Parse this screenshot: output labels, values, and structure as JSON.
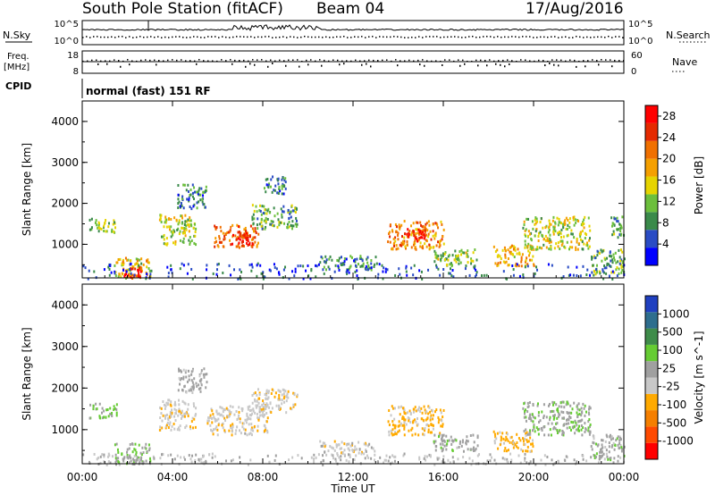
{
  "header": {
    "station": "South Pole Station (fitACF)",
    "beam": "Beam 04",
    "date": "17/Aug/2016"
  },
  "top_panels": {
    "nsky_label": "N.Sky",
    "nsky_ticks": [
      "10^5",
      "10^0"
    ],
    "nsearch_label": "N.Search",
    "nsearch_ticks": [
      "10^5",
      "10^0"
    ],
    "freq_label_1": "Freq.",
    "freq_label_2": "[MHz]",
    "freq_ticks": [
      "18",
      "8"
    ],
    "nave_label": "Nave",
    "nave_ticks": [
      "60",
      "0"
    ],
    "cpid_label": "CPID",
    "cpid_value": "normal (fast) 151 RF"
  },
  "colors": {
    "power_scale": [
      "#0000ff",
      "#2a4cc4",
      "#3a8a4a",
      "#6cbf3c",
      "#e6d400",
      "#f5a000",
      "#f07000",
      "#e52a00",
      "#ff0000"
    ],
    "velocity_scale": [
      "#ff0000",
      "#ff4a00",
      "#f57f00",
      "#ffaa00",
      "#c8c8c8",
      "#a0a0a0",
      "#66cc33",
      "#3f8c4a",
      "#2e6e8e",
      "#2040c0"
    ],
    "axis": "#000000"
  },
  "chart_data": [
    {
      "type": "heatmap",
      "title": "Power",
      "ylabel": "Slant Range [km]",
      "xlabel": "",
      "x_ticks": [
        "00:00",
        "04:00",
        "08:00",
        "12:00",
        "16:00",
        "20:00",
        "00:00"
      ],
      "xlim": [
        0,
        24
      ],
      "y_ticks": [
        "1000",
        "2000",
        "3000",
        "4000"
      ],
      "ylim": [
        180,
        4500
      ],
      "colorbar_label": "Power [dB]",
      "colorbar_ticks": [
        "4",
        "8",
        "12",
        "16",
        "20",
        "24",
        "28"
      ],
      "colorbar_range": [
        0,
        30
      ],
      "scatter_regions": [
        {
          "t0": 0.3,
          "t1": 1.5,
          "r0": 1300,
          "r1": 1650,
          "value": 12
        },
        {
          "t0": 1.4,
          "t1": 3.0,
          "r0": 200,
          "r1": 700,
          "value": 16
        },
        {
          "t0": 1.8,
          "t1": 2.6,
          "r0": 220,
          "r1": 480,
          "value": 26
        },
        {
          "t0": 3.4,
          "t1": 5.0,
          "r0": 1000,
          "r1": 1750,
          "value": 14
        },
        {
          "t0": 4.2,
          "t1": 5.5,
          "r0": 1900,
          "r1": 2500,
          "value": 8
        },
        {
          "t0": 5.8,
          "t1": 7.8,
          "r0": 950,
          "r1": 1500,
          "value": 22
        },
        {
          "t0": 6.6,
          "t1": 7.4,
          "r0": 1000,
          "r1": 1300,
          "value": 27
        },
        {
          "t0": 7.5,
          "t1": 9.5,
          "r0": 1400,
          "r1": 2000,
          "value": 10
        },
        {
          "t0": 8.0,
          "t1": 9.0,
          "r0": 2200,
          "r1": 2700,
          "value": 7
        },
        {
          "t0": 10.5,
          "t1": 13.0,
          "r0": 400,
          "r1": 750,
          "value": 8
        },
        {
          "t0": 13.5,
          "t1": 16.0,
          "r0": 900,
          "r1": 1600,
          "value": 20
        },
        {
          "t0": 14.3,
          "t1": 15.2,
          "r0": 1100,
          "r1": 1400,
          "value": 26
        },
        {
          "t0": 15.5,
          "t1": 17.5,
          "r0": 500,
          "r1": 900,
          "value": 12
        },
        {
          "t0": 18.2,
          "t1": 20.0,
          "r0": 500,
          "r1": 1000,
          "value": 18
        },
        {
          "t0": 19.5,
          "t1": 22.5,
          "r0": 900,
          "r1": 1700,
          "value": 14
        },
        {
          "t0": 22.5,
          "t1": 24.0,
          "r0": 300,
          "r1": 900,
          "value": 10
        },
        {
          "t0": 23.4,
          "t1": 24.0,
          "r0": 1200,
          "r1": 1700,
          "value": 9
        },
        {
          "t0": 0.0,
          "t1": 24.0,
          "r0": 180,
          "r1": 560,
          "value": 5
        }
      ]
    },
    {
      "type": "heatmap",
      "title": "Velocity",
      "ylabel": "Slant Range [km]",
      "xlabel": "Time UT",
      "x_ticks": [
        "00:00",
        "04:00",
        "08:00",
        "12:00",
        "16:00",
        "20:00",
        "00:00"
      ],
      "xlim": [
        0,
        24
      ],
      "y_ticks": [
        "1000",
        "2000",
        "3000",
        "4000"
      ],
      "ylim": [
        180,
        4500
      ],
      "colorbar_label": "Velocity [m s^-1]",
      "colorbar_ticks": [
        "1000",
        "500",
        "100",
        "25",
        "-25",
        "-100",
        "-500",
        "-1000"
      ],
      "colorbar_range": [
        -1000,
        1000
      ],
      "scatter_regions": [
        {
          "t0": 0.3,
          "t1": 1.5,
          "r0": 1300,
          "r1": 1650,
          "value": 200
        },
        {
          "t0": 1.4,
          "t1": 3.0,
          "r0": 200,
          "r1": 700,
          "value": 150
        },
        {
          "t0": 3.4,
          "t1": 5.0,
          "r0": 1000,
          "r1": 1750,
          "value": -150
        },
        {
          "t0": 4.2,
          "t1": 5.5,
          "r0": 1900,
          "r1": 2500,
          "value": 60
        },
        {
          "t0": 5.5,
          "t1": 8.2,
          "r0": 900,
          "r1": 1600,
          "value": -120
        },
        {
          "t0": 7.5,
          "t1": 9.5,
          "r0": 1400,
          "r1": 2000,
          "value": -150
        },
        {
          "t0": 10.5,
          "t1": 13.0,
          "r0": 400,
          "r1": 750,
          "value": -100
        },
        {
          "t0": 13.5,
          "t1": 16.0,
          "r0": 900,
          "r1": 1600,
          "value": -250
        },
        {
          "t0": 15.5,
          "t1": 17.5,
          "r0": 500,
          "r1": 900,
          "value": 120
        },
        {
          "t0": 18.2,
          "t1": 20.0,
          "r0": 500,
          "r1": 1000,
          "value": -250
        },
        {
          "t0": 19.5,
          "t1": 22.5,
          "r0": 900,
          "r1": 1700,
          "value": 150
        },
        {
          "t0": 22.5,
          "t1": 24.0,
          "r0": 300,
          "r1": 900,
          "value": 100
        },
        {
          "t0": 0.0,
          "t1": 24.0,
          "r0": 180,
          "r1": 450,
          "value": 0
        }
      ]
    }
  ]
}
